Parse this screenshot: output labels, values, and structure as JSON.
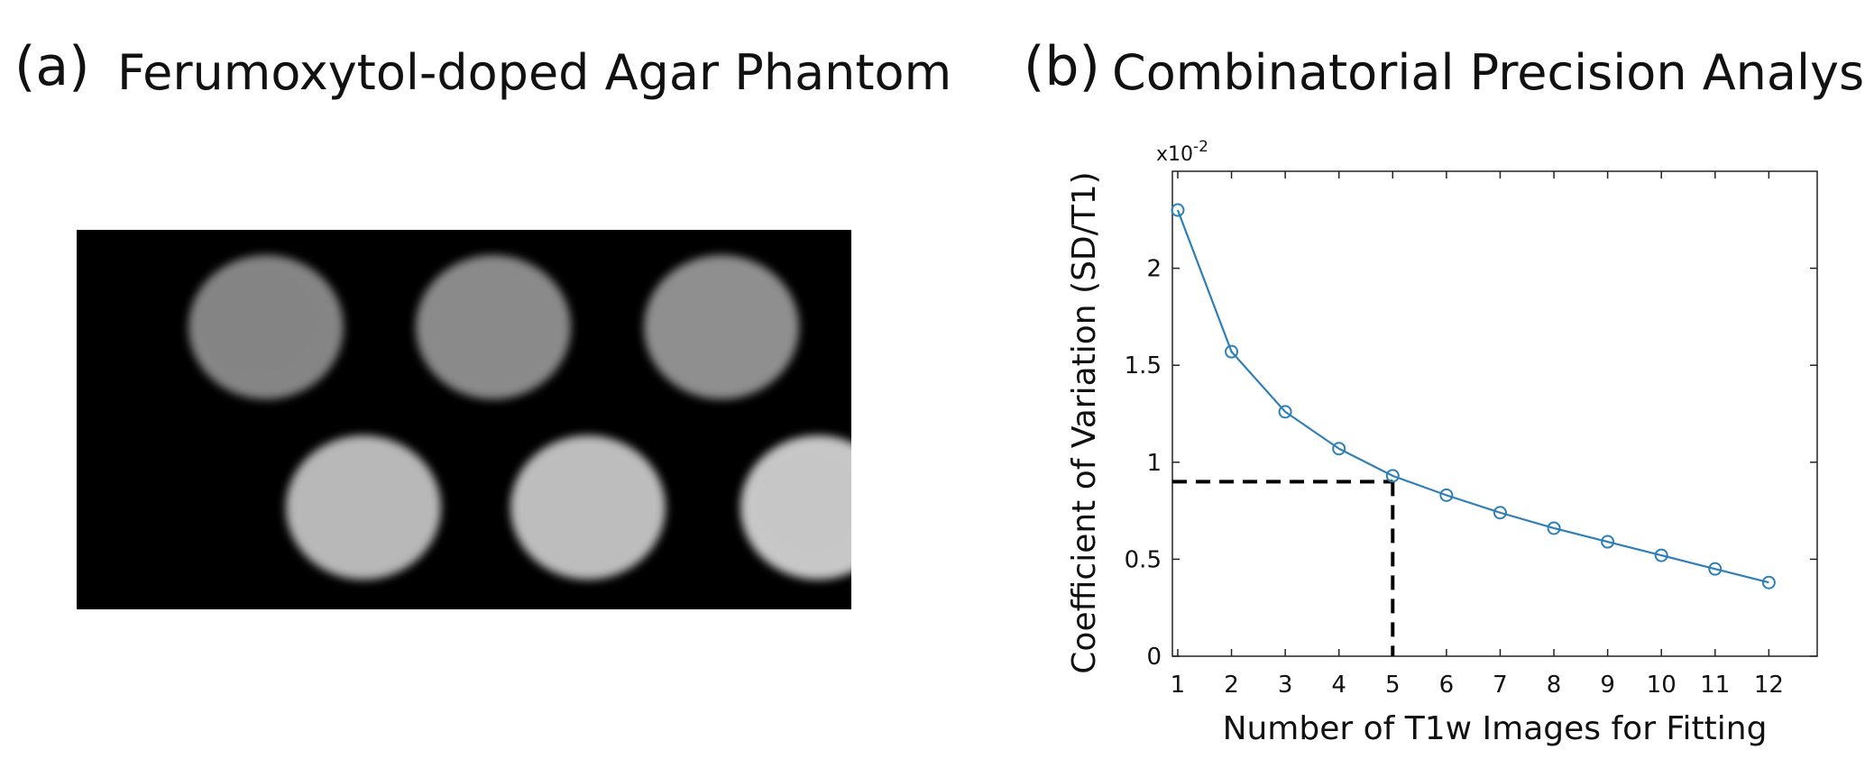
{
  "panel_a": {
    "label": "(a)",
    "title": "Ferumoxytol-doped Agar Phantom",
    "vials": [
      {
        "brightness": 0.52
      },
      {
        "brightness": 0.54
      },
      {
        "brightness": 0.56
      },
      {
        "brightness": 0.72
      },
      {
        "brightness": 0.74
      },
      {
        "brightness": 0.78
      }
    ]
  },
  "panel_b": {
    "label": "(b)",
    "title": "Combinatorial Precision Analysis"
  },
  "chart_data": {
    "type": "line",
    "xlabel": "Number of T1w Images for Fitting",
    "ylabel": "Coefficient of Variation (SD/T1)",
    "y_exponent_label": "x10",
    "y_exponent_power": "-2",
    "x": [
      1,
      2,
      3,
      4,
      5,
      6,
      7,
      8,
      9,
      10,
      11,
      12
    ],
    "series": [
      {
        "values": [
          2.3,
          1.57,
          1.26,
          1.07,
          0.93,
          0.83,
          0.74,
          0.66,
          0.59,
          0.52,
          0.45,
          0.38
        ],
        "color": "#2e7fb8",
        "marker": "circle-open"
      }
    ],
    "xlim": [
      0.9,
      12.9
    ],
    "ylim": [
      0,
      2.5
    ],
    "xticks": [
      "1",
      "2",
      "3",
      "4",
      "5",
      "6",
      "7",
      "8",
      "9",
      "10",
      "11",
      "12"
    ],
    "yticks": [
      {
        "value": 0,
        "label": "0"
      },
      {
        "value": 0.5,
        "label": "0.5"
      },
      {
        "value": 1,
        "label": "1"
      },
      {
        "value": 1.5,
        "label": "1.5"
      },
      {
        "value": 2,
        "label": "2"
      }
    ],
    "annotation": {
      "type": "dashed-reference",
      "x": 5,
      "y": 0.9,
      "color": "#000000"
    },
    "grid": false,
    "box": true
  }
}
